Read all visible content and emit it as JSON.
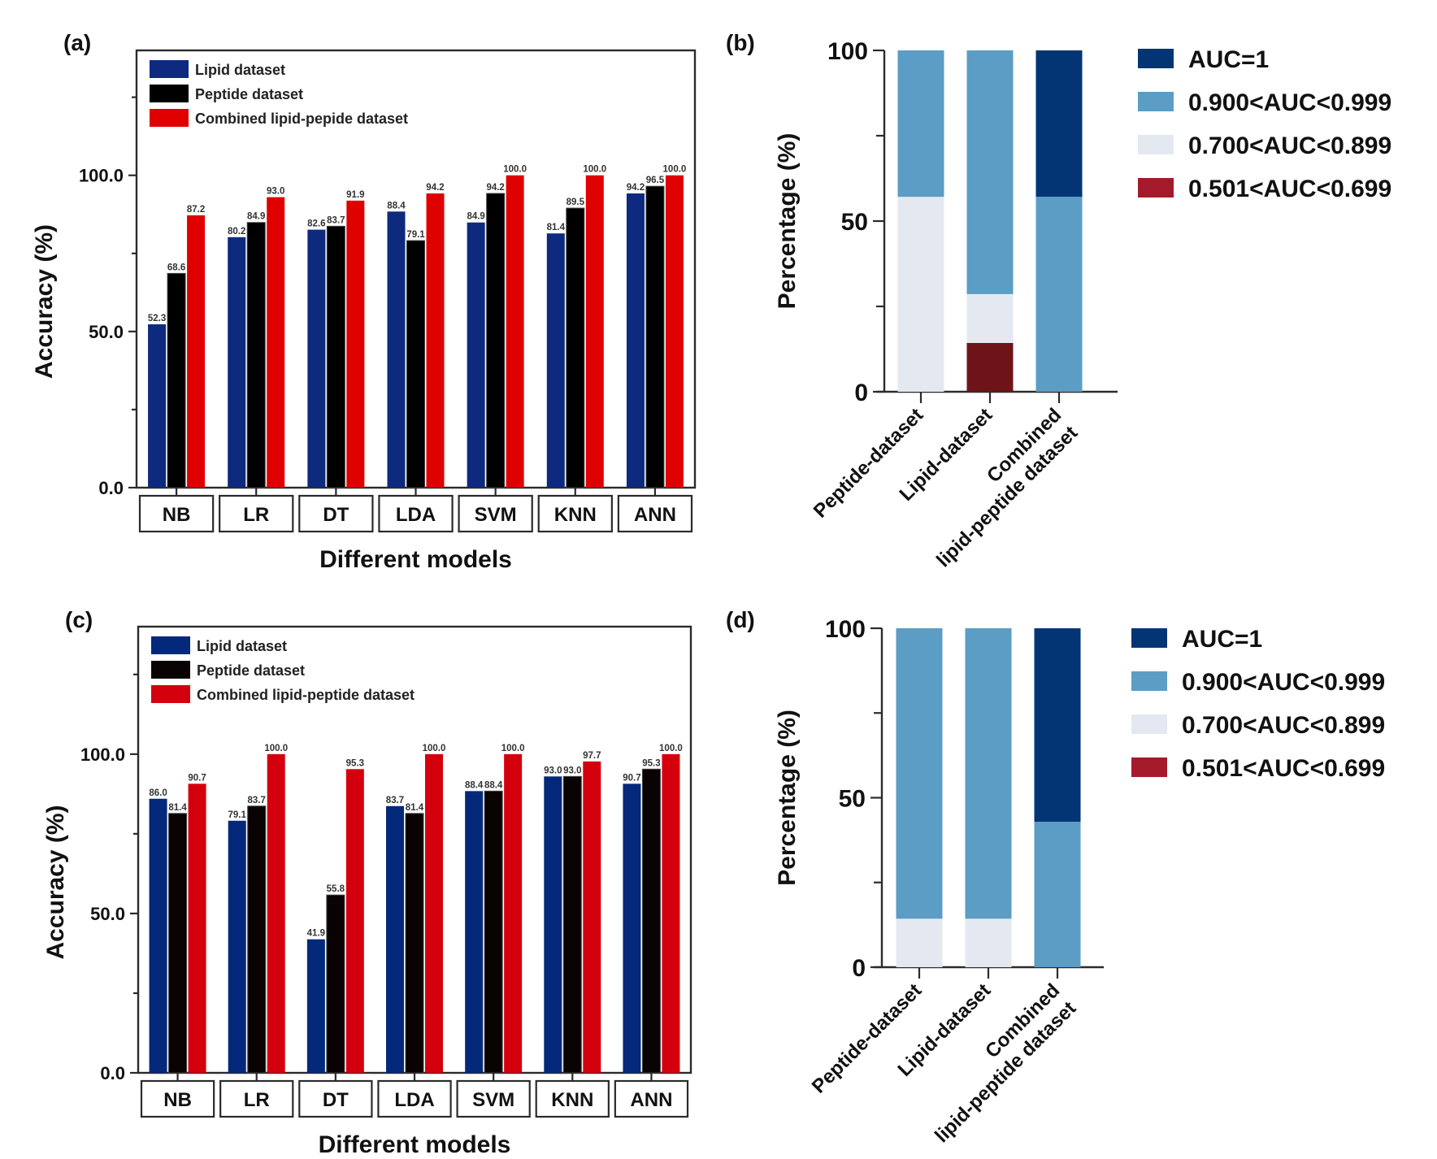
{
  "chart_data": [
    {
      "panel": "(a)",
      "type": "bar",
      "title": "",
      "xlabel": "Different models",
      "ylabel": "Accuracy (%)",
      "ylim": [
        0,
        140
      ],
      "yticks": [
        "0.0",
        "50.0",
        "100.0"
      ],
      "grid": false,
      "legend_position": "top-left",
      "categories": [
        "NB",
        "LR",
        "DT",
        "LDA",
        "SVM",
        "KNN",
        "ANN"
      ],
      "series": [
        {
          "name": "Lipid dataset",
          "color": "#0d2a7f",
          "values": [
            52.3,
            80.2,
            82.6,
            88.4,
            84.9,
            81.4,
            94.2
          ]
        },
        {
          "name": "Peptide dataset",
          "color": "#000000",
          "values": [
            68.6,
            84.9,
            83.7,
            79.1,
            94.2,
            89.5,
            96.5
          ]
        },
        {
          "name": "Combined lipid-pepide dataset",
          "color": "#e00000",
          "values": [
            87.2,
            93.0,
            91.9,
            94.2,
            100.0,
            100.0,
            100.0
          ]
        }
      ]
    },
    {
      "panel": "(b)",
      "type": "bar",
      "stacked": true,
      "title": "",
      "xlabel": "",
      "ylabel": "Percentage (%)",
      "ylim": [
        0,
        100
      ],
      "yticks": [
        "0",
        "50",
        "100"
      ],
      "grid": false,
      "legend_position": "right",
      "categories": [
        "Peptide-dataset",
        "Lipid-dataset",
        "Combined\nlipid-peptide dataset"
      ],
      "category_lines": [
        [
          "Peptide-dataset"
        ],
        [
          "Lipid-dataset"
        ],
        [
          "Combined",
          "lipid-peptide dataset"
        ]
      ],
      "series": [
        {
          "name": "0.501<AUC<0.699",
          "color": "#6e1418",
          "legend_color": "#a51a2b",
          "values": [
            0,
            14.3,
            0
          ]
        },
        {
          "name": "0.700<AUC<0.899",
          "color": "#e4e9f1",
          "values": [
            57.1,
            14.3,
            0
          ]
        },
        {
          "name": "0.900<AUC<0.999",
          "color": "#5b9dc5",
          "values": [
            42.9,
            71.4,
            57.1
          ]
        },
        {
          "name": "AUC=1",
          "color": "#033574",
          "values": [
            0,
            0,
            42.9
          ]
        }
      ],
      "legend_order": [
        "AUC=1",
        "0.900<AUC<0.999",
        "0.700<AUC<0.899",
        "0.501<AUC<0.699"
      ]
    },
    {
      "panel": "(c)",
      "type": "bar",
      "title": "",
      "xlabel": "Different models",
      "ylabel": "Accuracy (%)",
      "ylim": [
        0,
        140
      ],
      "yticks": [
        "0.0",
        "50.0",
        "100.0"
      ],
      "grid": false,
      "legend_position": "top-left",
      "categories": [
        "NB",
        "LR",
        "DT",
        "LDA",
        "SVM",
        "KNN",
        "ANN"
      ],
      "series": [
        {
          "name": "Lipid dataset",
          "color": "#04297a",
          "values": [
            86.0,
            79.1,
            41.9,
            83.7,
            88.4,
            93.0,
            90.7
          ]
        },
        {
          "name": "Peptide dataset",
          "color": "#0a0303",
          "values": [
            81.4,
            83.7,
            55.8,
            81.4,
            88.4,
            93.0,
            95.3
          ]
        },
        {
          "name": "Combined lipid-peptide dataset",
          "color": "#d5000d",
          "values": [
            90.7,
            100.0,
            95.3,
            100.0,
            100.0,
            97.7,
            100.0
          ]
        }
      ]
    },
    {
      "panel": "(d)",
      "type": "bar",
      "stacked": true,
      "title": "",
      "xlabel": "",
      "ylabel": "Percentage (%)",
      "ylim": [
        0,
        100
      ],
      "yticks": [
        "0",
        "50",
        "100"
      ],
      "grid": false,
      "legend_position": "right",
      "categories": [
        "Peptide-dataset",
        "Lipid-dataset",
        "Combined\nlipid-peptide dataset"
      ],
      "category_lines": [
        [
          "Peptide-dataset"
        ],
        [
          "Lipid-dataset"
        ],
        [
          "Combined",
          "lipid-peptide dataset"
        ]
      ],
      "series": [
        {
          "name": "0.501<AUC<0.699",
          "color": "#6e1418",
          "legend_color": "#a51a2b",
          "values": [
            0,
            0,
            0
          ]
        },
        {
          "name": "0.700<AUC<0.899",
          "color": "#e4e9f1",
          "values": [
            14.3,
            14.3,
            0
          ]
        },
        {
          "name": "0.900<AUC<0.999",
          "color": "#5b9dc5",
          "values": [
            85.7,
            85.7,
            42.9
          ]
        },
        {
          "name": "AUC=1",
          "color": "#033574",
          "values": [
            0,
            0,
            57.1
          ]
        }
      ],
      "legend_order": [
        "AUC=1",
        "0.900<AUC<0.999",
        "0.700<AUC<0.899",
        "0.501<AUC<0.699"
      ]
    }
  ]
}
